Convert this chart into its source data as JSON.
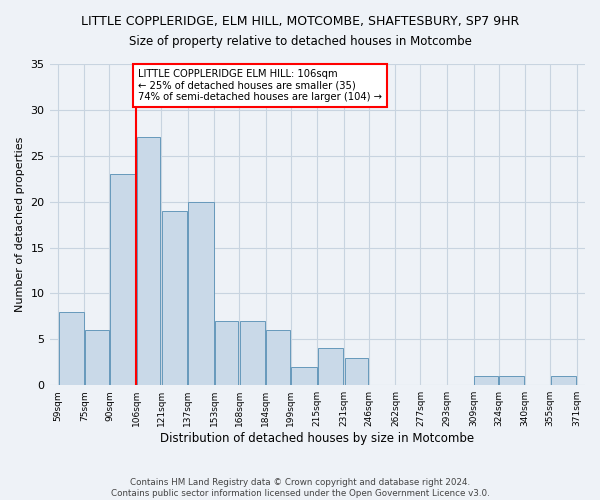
{
  "title": "LITTLE COPPLERIDGE, ELM HILL, MOTCOMBE, SHAFTESBURY, SP7 9HR",
  "subtitle": "Size of property relative to detached houses in Motcombe",
  "xlabel": "Distribution of detached houses by size in Motcombe",
  "ylabel": "Number of detached properties",
  "bins": [
    59,
    75,
    90,
    106,
    121,
    137,
    153,
    168,
    184,
    199,
    215,
    231,
    246,
    262,
    277,
    293,
    309,
    324,
    340,
    355,
    371
  ],
  "bin_labels": [
    "59sqm",
    "75sqm",
    "90sqm",
    "106sqm",
    "121sqm",
    "137sqm",
    "153sqm",
    "168sqm",
    "184sqm",
    "199sqm",
    "215sqm",
    "231sqm",
    "246sqm",
    "262sqm",
    "277sqm",
    "293sqm",
    "309sqm",
    "324sqm",
    "340sqm",
    "355sqm",
    "371sqm"
  ],
  "counts": [
    8,
    6,
    23,
    27,
    19,
    20,
    7,
    7,
    6,
    2,
    4,
    3,
    0,
    0,
    0,
    0,
    1,
    1,
    0,
    1
  ],
  "bar_color": "#c9d9e8",
  "bar_edge_color": "#6699bb",
  "vline_x": 106,
  "vline_color": "red",
  "annotation_text": "LITTLE COPPLERIDGE ELM HILL: 106sqm\n← 25% of detached houses are smaller (35)\n74% of semi-detached houses are larger (104) →",
  "annotation_box_color": "white",
  "annotation_box_edge_color": "red",
  "ylim": [
    0,
    35
  ],
  "yticks": [
    0,
    5,
    10,
    15,
    20,
    25,
    30,
    35
  ],
  "grid_color": "#c8d4e0",
  "background_color": "#eef2f7",
  "footer_line1": "Contains HM Land Registry data © Crown copyright and database right 2024.",
  "footer_line2": "Contains public sector information licensed under the Open Government Licence v3.0."
}
